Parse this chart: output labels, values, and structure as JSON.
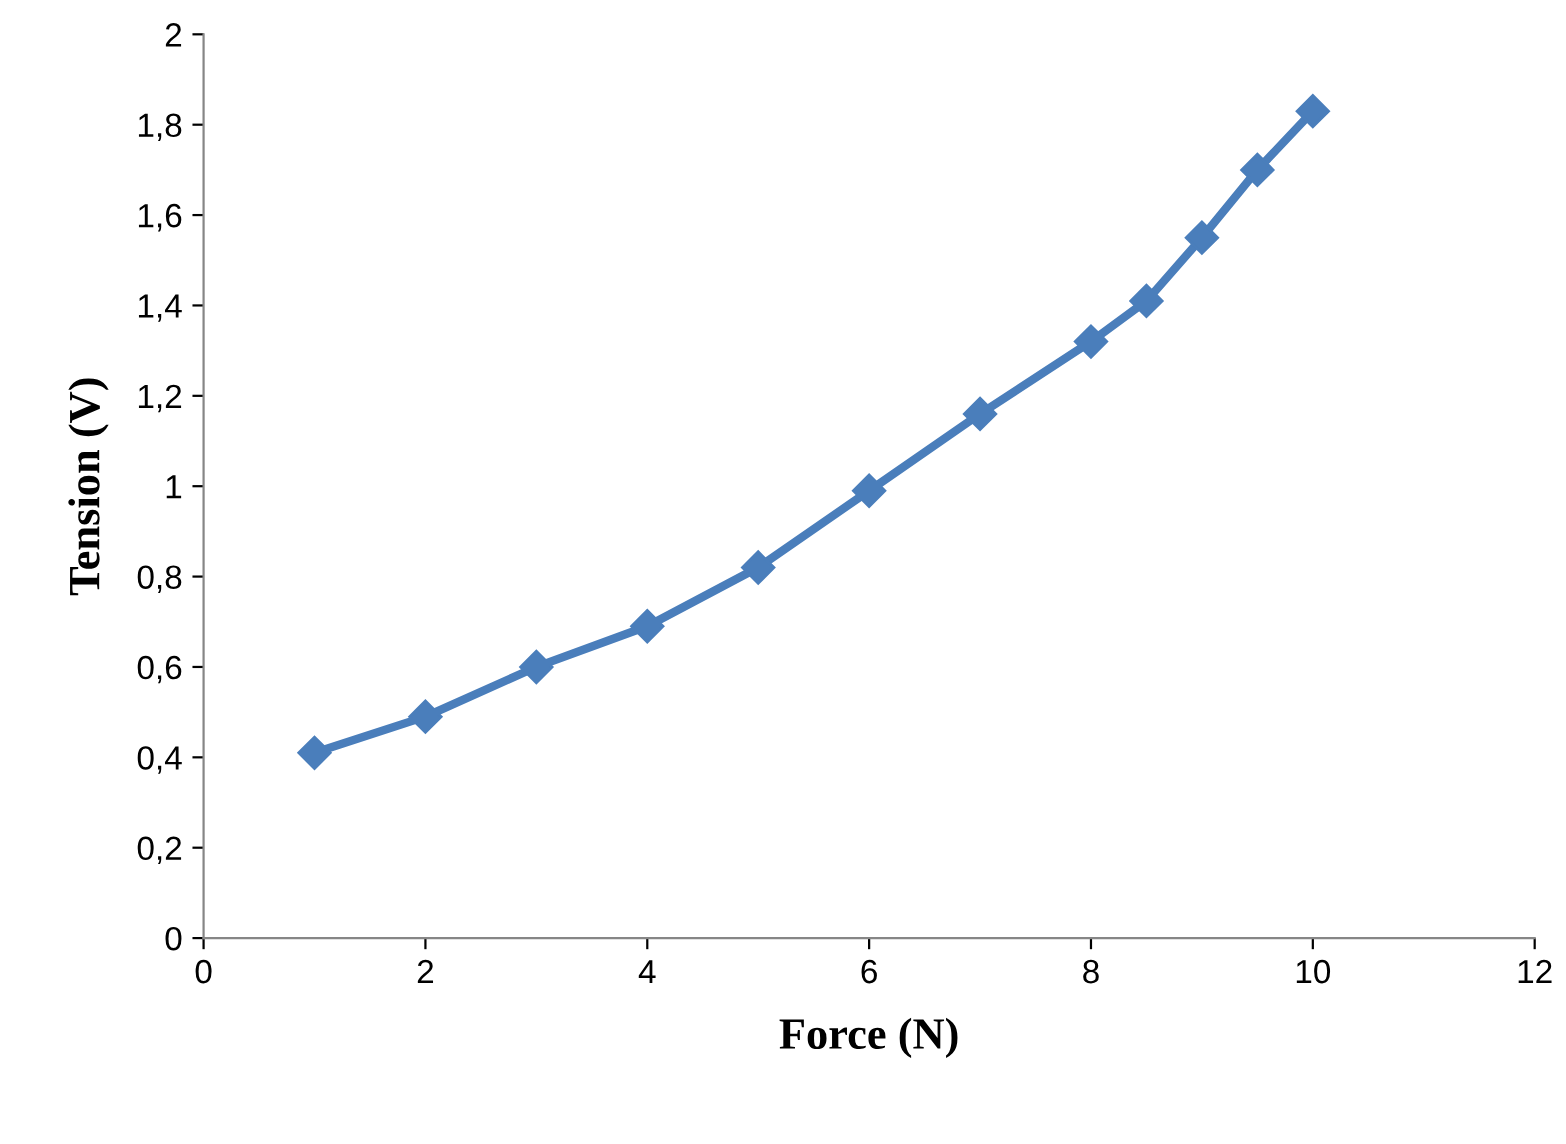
{
  "chart_data": {
    "type": "line",
    "xlabel": "Force (N)",
    "ylabel": "Tension (V)",
    "x": [
      1,
      2,
      3,
      4,
      5,
      6,
      7,
      8,
      8.5,
      9,
      9.5,
      10
    ],
    "series": [
      {
        "color": "#4a7ebb",
        "values": [
          0.41,
          0.49,
          0.6,
          0.69,
          0.82,
          0.99,
          1.16,
          1.32,
          1.41,
          1.55,
          1.7,
          1.83
        ]
      }
    ],
    "xlim": [
      0,
      12
    ],
    "xticks": [
      0,
      2,
      4,
      6,
      8,
      10,
      12
    ],
    "ylim": [
      0,
      2
    ],
    "yticks": [
      0,
      {
        "value": 0.2,
        "label": "0,2"
      },
      {
        "value": 0.4,
        "label": "0,4"
      },
      {
        "value": 0.6,
        "label": "0,6"
      },
      {
        "value": 0.8,
        "label": "0,8"
      },
      1,
      {
        "value": 1.2,
        "label": "1,2"
      },
      {
        "value": 1.4,
        "label": "1,4"
      },
      {
        "value": 1.6,
        "label": "1,6"
      },
      {
        "value": 1.8,
        "label": "1,8"
      },
      2
    ],
    "grid": false,
    "legend": false,
    "marker": "diamond",
    "line_style": "solid"
  }
}
